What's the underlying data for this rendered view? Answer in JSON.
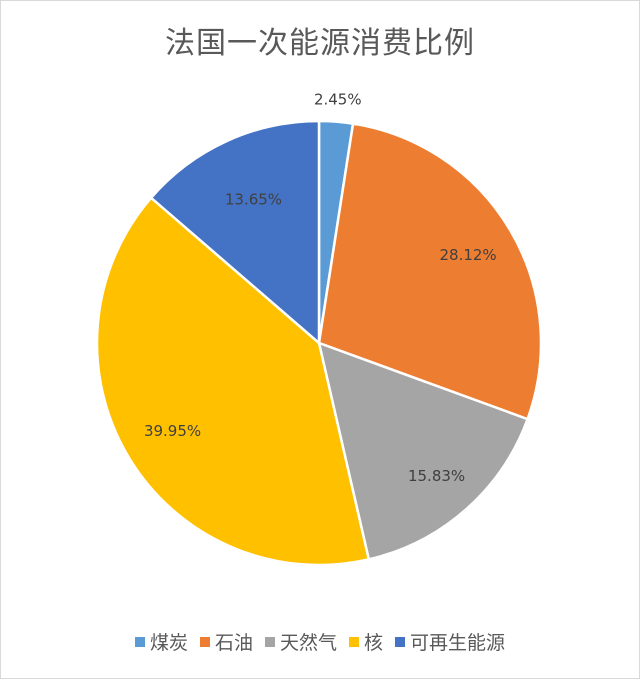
{
  "chart_data": {
    "type": "pie",
    "title": "法国一次能源消费比例",
    "slices": [
      {
        "name": "煤炭",
        "value": 2.45,
        "label": "2.45%",
        "color": "#5B9BD5"
      },
      {
        "name": "石油",
        "value": 28.12,
        "label": "28.12%",
        "color": "#ED7D31"
      },
      {
        "name": "天然气",
        "value": 15.83,
        "label": "15.83%",
        "color": "#A5A5A5"
      },
      {
        "name": "核",
        "value": 39.95,
        "label": "39.95%",
        "color": "#FFC000"
      },
      {
        "name": "可再生能源",
        "value": 13.65,
        "label": "13.65%",
        "color": "#4472C4"
      }
    ],
    "legend_position": "bottom"
  }
}
